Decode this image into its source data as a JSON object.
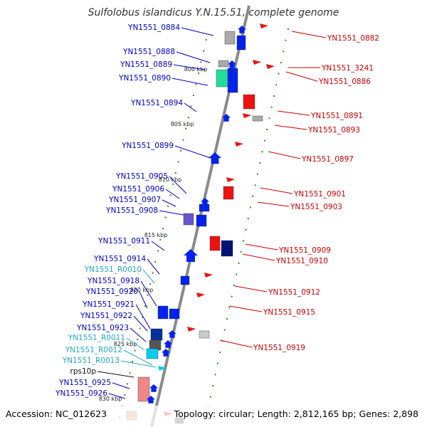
{
  "title": "Sulfolobus islandicus Y.N.15.51, complete genome",
  "footer": {
    "accession": "Accession: NC_012623",
    "topology": "Topology: circular; Length: 2,812,165 bp; Genes: 2,898"
  },
  "colors": {
    "backbone": "#8a8a8a",
    "forward_label": "#0000cc",
    "rna_label": "#22aacc",
    "reverse_label": "#cc0000",
    "tick": "#2e8b2e",
    "cds": "#0022ee",
    "rrna_trna": "#00ccee",
    "pseudo_grey": "#aaaaaa",
    "ribosomal_pink": "#ee8888"
  },
  "scale_labels": [
    "800 kbp",
    "805 kbp",
    "810 kbp",
    "815 kbp",
    "820 kbp",
    "825 kbp",
    "830 kbp"
  ],
  "forward_labels": [
    {
      "text": "YN1551_0884",
      "kind": "cds"
    },
    {
      "text": "YN1551_0888",
      "kind": "cds"
    },
    {
      "text": "YN1551_0889",
      "kind": "cds"
    },
    {
      "text": "YN1551_0890",
      "kind": "cds"
    },
    {
      "text": "YN1551_0894",
      "kind": "cds"
    },
    {
      "text": "YN1551_0899",
      "kind": "cds"
    },
    {
      "text": "YN1551_0905",
      "kind": "cds"
    },
    {
      "text": "YN1551_0906",
      "kind": "cds"
    },
    {
      "text": "YN1551_0907",
      "kind": "cds"
    },
    {
      "text": "YN1551_0908",
      "kind": "cds"
    },
    {
      "text": "YN1551_0911",
      "kind": "cds"
    },
    {
      "text": "YN1551_0914",
      "kind": "cds"
    },
    {
      "text": "YN1551_R0010",
      "kind": "rna"
    },
    {
      "text": "YN1551_0918",
      "kind": "cds"
    },
    {
      "text": "YN1551_0920",
      "kind": "cds"
    },
    {
      "text": "YN1551_0921",
      "kind": "cds"
    },
    {
      "text": "YN1551_0922",
      "kind": "cds"
    },
    {
      "text": "YN1551_0923",
      "kind": "cds"
    },
    {
      "text": "YN1551_R0011",
      "kind": "rna"
    },
    {
      "text": "YN1551_R0012",
      "kind": "rna"
    },
    {
      "text": "YN1551_R0013",
      "kind": "rna"
    },
    {
      "text": "rps10p",
      "kind": "cds"
    },
    {
      "text": "YN1551_0925",
      "kind": "cds"
    },
    {
      "text": "YN1551_0926",
      "kind": "cds"
    }
  ],
  "reverse_labels": [
    {
      "text": "YN1551_0882"
    },
    {
      "text": "YN1551_3241"
    },
    {
      "text": "YN1551_0886"
    },
    {
      "text": "YN1551_0891"
    },
    {
      "text": "YN1551_0893"
    },
    {
      "text": "YN1551_0897"
    },
    {
      "text": "YN1551_0901"
    },
    {
      "text": "YN1551_0903"
    },
    {
      "text": "YN1551_0909"
    },
    {
      "text": "YN1551_0910"
    },
    {
      "text": "YN1551_0912"
    },
    {
      "text": "YN1551_0915"
    },
    {
      "text": "YN1551_0919"
    }
  ]
}
